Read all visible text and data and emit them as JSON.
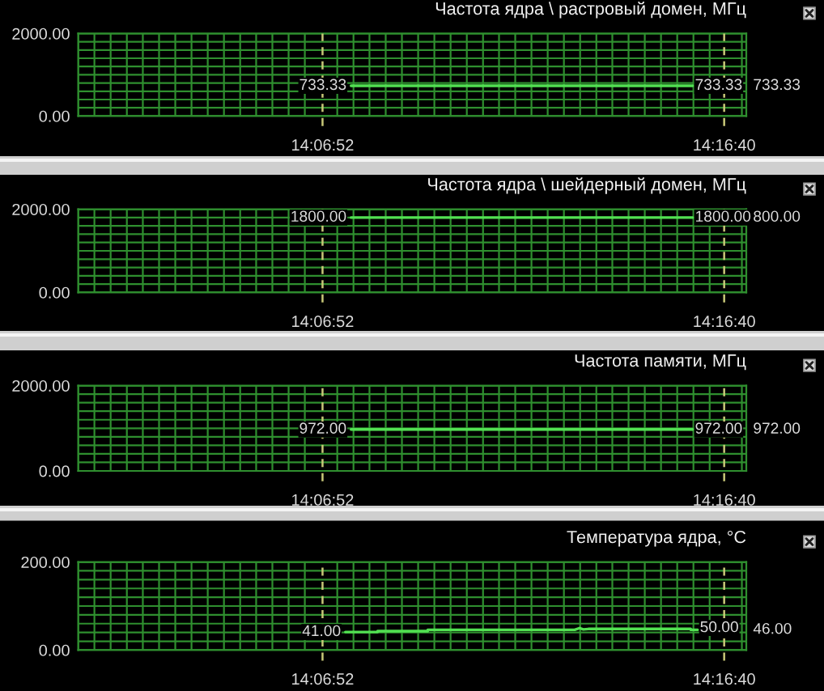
{
  "chart_data": [
    {
      "type": "line",
      "title": "Частота ядра \\ растровый домен, МГц",
      "xlim": [
        14.015,
        14.2868
      ],
      "xticks": [
        {
          "value": 14.015,
          "label": null
        },
        {
          "value": 14.0216,
          "label": null
        },
        {
          "value": 14.0282,
          "label": null
        },
        {
          "value": 14.0348,
          "label": null
        },
        {
          "value": 14.0413,
          "label": null
        },
        {
          "value": 14.0479,
          "label": null
        },
        {
          "value": 14.0545,
          "label": null
        },
        {
          "value": 14.0611,
          "label": null
        },
        {
          "value": 14.0677,
          "label": null
        },
        {
          "value": 14.0743,
          "label": null
        },
        {
          "value": 14.0809,
          "label": null
        },
        {
          "value": 14.0874,
          "label": null
        },
        {
          "value": 14.094,
          "label": null
        },
        {
          "value": 14.1006,
          "label": null
        },
        {
          "value": 14.1072,
          "label": null
        },
        {
          "value": 14.1204,
          "label": null
        },
        {
          "value": 14.127,
          "label": null
        },
        {
          "value": 14.1335,
          "label": null
        },
        {
          "value": 14.1401,
          "label": null
        },
        {
          "value": 14.1467,
          "label": null
        },
        {
          "value": 14.1533,
          "label": null
        },
        {
          "value": 14.1599,
          "label": null
        },
        {
          "value": 14.1665,
          "label": null
        },
        {
          "value": 14.1731,
          "label": null
        },
        {
          "value": 14.1797,
          "label": null
        },
        {
          "value": 14.1862,
          "label": null
        },
        {
          "value": 14.1928,
          "label": null
        },
        {
          "value": 14.1994,
          "label": null
        },
        {
          "value": 14.206,
          "label": null
        },
        {
          "value": 14.2126,
          "label": null
        },
        {
          "value": 14.2192,
          "label": null
        },
        {
          "value": 14.2258,
          "label": null
        },
        {
          "value": 14.2323,
          "label": null
        },
        {
          "value": 14.2389,
          "label": null
        },
        {
          "value": 14.2455,
          "label": null
        },
        {
          "value": 14.2521,
          "label": null
        },
        {
          "value": 14.2587,
          "label": null
        },
        {
          "value": 14.2653,
          "label": null
        },
        {
          "value": 14.2719,
          "label": null
        },
        {
          "value": 14.285,
          "label": null
        }
      ],
      "ylim": [
        0,
        2000
      ],
      "yticks": [
        {
          "value": 0,
          "label": "0.00"
        },
        {
          "value": 200,
          "label": null
        },
        {
          "value": 400,
          "label": null
        },
        {
          "value": 600,
          "label": null
        },
        {
          "value": 800,
          "label": null
        },
        {
          "value": 1000,
          "label": null
        },
        {
          "value": 1200,
          "label": null
        },
        {
          "value": 1400,
          "label": null
        },
        {
          "value": 1600,
          "label": null
        },
        {
          "value": 1800,
          "label": null
        },
        {
          "value": 2000,
          "label": "2000.00"
        }
      ],
      "tick_labels": "y",
      "grid": true,
      "series": [
        {
          "color": "#52e052",
          "x": [
            14.126,
            14.265
          ],
          "values": [
            733.33,
            733.33
          ]
        }
      ],
      "ref_lines": [
        {
          "axis": "x",
          "value": 14.1144,
          "label": "14:06:52",
          "color": "#c8c878",
          "line_style": "dashed"
        },
        {
          "axis": "x",
          "value": 14.2778,
          "label": "14:16:40",
          "color": "#c8c878",
          "line_style": "dashed"
        }
      ],
      "annotations": [
        {
          "text": "733.33",
          "x": 14.126,
          "y": 733.33
        },
        {
          "text": "733.33",
          "x": 14.265,
          "y": 733.33
        },
        "733.33"
      ]
    },
    {
      "type": "line",
      "title": "Частота ядра \\ шейдерный домен, МГц",
      "xlim": [
        14.015,
        14.2868
      ],
      "xticks": [
        {
          "value": 14.015,
          "label": null
        },
        {
          "value": 14.0216,
          "label": null
        },
        {
          "value": 14.0282,
          "label": null
        },
        {
          "value": 14.0348,
          "label": null
        },
        {
          "value": 14.0413,
          "label": null
        },
        {
          "value": 14.0479,
          "label": null
        },
        {
          "value": 14.0545,
          "label": null
        },
        {
          "value": 14.0611,
          "label": null
        },
        {
          "value": 14.0677,
          "label": null
        },
        {
          "value": 14.0743,
          "label": null
        },
        {
          "value": 14.0809,
          "label": null
        },
        {
          "value": 14.0874,
          "label": null
        },
        {
          "value": 14.094,
          "label": null
        },
        {
          "value": 14.1006,
          "label": null
        },
        {
          "value": 14.1072,
          "label": null
        },
        {
          "value": 14.1204,
          "label": null
        },
        {
          "value": 14.127,
          "label": null
        },
        {
          "value": 14.1335,
          "label": null
        },
        {
          "value": 14.1401,
          "label": null
        },
        {
          "value": 14.1467,
          "label": null
        },
        {
          "value": 14.1533,
          "label": null
        },
        {
          "value": 14.1599,
          "label": null
        },
        {
          "value": 14.1665,
          "label": null
        },
        {
          "value": 14.1731,
          "label": null
        },
        {
          "value": 14.1797,
          "label": null
        },
        {
          "value": 14.1862,
          "label": null
        },
        {
          "value": 14.1928,
          "label": null
        },
        {
          "value": 14.1994,
          "label": null
        },
        {
          "value": 14.206,
          "label": null
        },
        {
          "value": 14.2126,
          "label": null
        },
        {
          "value": 14.2192,
          "label": null
        },
        {
          "value": 14.2258,
          "label": null
        },
        {
          "value": 14.2323,
          "label": null
        },
        {
          "value": 14.2389,
          "label": null
        },
        {
          "value": 14.2455,
          "label": null
        },
        {
          "value": 14.2521,
          "label": null
        },
        {
          "value": 14.2587,
          "label": null
        },
        {
          "value": 14.2653,
          "label": null
        },
        {
          "value": 14.2719,
          "label": null
        },
        {
          "value": 14.285,
          "label": null
        }
      ],
      "ylim": [
        0,
        2000
      ],
      "yticks": [
        {
          "value": 0,
          "label": "0.00"
        },
        {
          "value": 200,
          "label": null
        },
        {
          "value": 400,
          "label": null
        },
        {
          "value": 600,
          "label": null
        },
        {
          "value": 800,
          "label": null
        },
        {
          "value": 1000,
          "label": null
        },
        {
          "value": 1200,
          "label": null
        },
        {
          "value": 1400,
          "label": null
        },
        {
          "value": 1600,
          "label": null
        },
        {
          "value": 1800,
          "label": null
        },
        {
          "value": 2000,
          "label": "2000.00"
        }
      ],
      "tick_labels": "y",
      "grid": true,
      "series": [
        {
          "color": "#52e052",
          "x": [
            14.126,
            14.265
          ],
          "values": [
            1800,
            1800
          ]
        }
      ],
      "ref_lines": [
        {
          "axis": "x",
          "value": 14.1144,
          "label": "14:06:52",
          "color": "#c8c878",
          "line_style": "dashed"
        },
        {
          "axis": "x",
          "value": 14.2778,
          "label": "14:16:40",
          "color": "#c8c878",
          "line_style": "dashed"
        }
      ],
      "annotations": [
        {
          "text": "1800.00",
          "x": 14.126,
          "y": 1800
        },
        {
          "text": "1800.00",
          "x": 14.265,
          "y": 1800
        },
        "800.00"
      ]
    },
    {
      "type": "line",
      "title": "Частота памяти, МГц",
      "xlim": [
        14.015,
        14.2868
      ],
      "xticks": [
        {
          "value": 14.015,
          "label": null
        },
        {
          "value": 14.0216,
          "label": null
        },
        {
          "value": 14.0282,
          "label": null
        },
        {
          "value": 14.0348,
          "label": null
        },
        {
          "value": 14.0413,
          "label": null
        },
        {
          "value": 14.0479,
          "label": null
        },
        {
          "value": 14.0545,
          "label": null
        },
        {
          "value": 14.0611,
          "label": null
        },
        {
          "value": 14.0677,
          "label": null
        },
        {
          "value": 14.0743,
          "label": null
        },
        {
          "value": 14.0809,
          "label": null
        },
        {
          "value": 14.0874,
          "label": null
        },
        {
          "value": 14.094,
          "label": null
        },
        {
          "value": 14.1006,
          "label": null
        },
        {
          "value": 14.1072,
          "label": null
        },
        {
          "value": 14.1204,
          "label": null
        },
        {
          "value": 14.127,
          "label": null
        },
        {
          "value": 14.1335,
          "label": null
        },
        {
          "value": 14.1401,
          "label": null
        },
        {
          "value": 14.1467,
          "label": null
        },
        {
          "value": 14.1533,
          "label": null
        },
        {
          "value": 14.1599,
          "label": null
        },
        {
          "value": 14.1665,
          "label": null
        },
        {
          "value": 14.1731,
          "label": null
        },
        {
          "value": 14.1797,
          "label": null
        },
        {
          "value": 14.1862,
          "label": null
        },
        {
          "value": 14.1928,
          "label": null
        },
        {
          "value": 14.1994,
          "label": null
        },
        {
          "value": 14.206,
          "label": null
        },
        {
          "value": 14.2126,
          "label": null
        },
        {
          "value": 14.2192,
          "label": null
        },
        {
          "value": 14.2258,
          "label": null
        },
        {
          "value": 14.2323,
          "label": null
        },
        {
          "value": 14.2389,
          "label": null
        },
        {
          "value": 14.2455,
          "label": null
        },
        {
          "value": 14.2521,
          "label": null
        },
        {
          "value": 14.2587,
          "label": null
        },
        {
          "value": 14.2653,
          "label": null
        },
        {
          "value": 14.2719,
          "label": null
        },
        {
          "value": 14.285,
          "label": null
        }
      ],
      "ylim": [
        0,
        2000
      ],
      "yticks": [
        {
          "value": 0,
          "label": "0.00"
        },
        {
          "value": 200,
          "label": null
        },
        {
          "value": 400,
          "label": null
        },
        {
          "value": 600,
          "label": null
        },
        {
          "value": 800,
          "label": null
        },
        {
          "value": 1000,
          "label": null
        },
        {
          "value": 1200,
          "label": null
        },
        {
          "value": 1400,
          "label": null
        },
        {
          "value": 1600,
          "label": null
        },
        {
          "value": 1800,
          "label": null
        },
        {
          "value": 2000,
          "label": "2000.00"
        }
      ],
      "tick_labels": "y",
      "grid": true,
      "series": [
        {
          "color": "#52e052",
          "x": [
            14.126,
            14.265
          ],
          "values": [
            972,
            972
          ]
        }
      ],
      "ref_lines": [
        {
          "axis": "x",
          "value": 14.1144,
          "label": "14:06:52",
          "color": "#c8c878",
          "line_style": "dashed"
        },
        {
          "axis": "x",
          "value": 14.2778,
          "label": "14:16:40",
          "color": "#c8c878",
          "line_style": "dashed"
        }
      ],
      "annotations": [
        {
          "text": "972.00",
          "x": 14.126,
          "y": 972
        },
        {
          "text": "972.00",
          "x": 14.265,
          "y": 972
        },
        "972.00"
      ]
    },
    {
      "type": "line",
      "title": "Температура ядра, °C",
      "xlim": [
        14.015,
        14.2868
      ],
      "xticks": [
        {
          "value": 14.015,
          "label": null
        },
        {
          "value": 14.0216,
          "label": null
        },
        {
          "value": 14.0282,
          "label": null
        },
        {
          "value": 14.0348,
          "label": null
        },
        {
          "value": 14.0413,
          "label": null
        },
        {
          "value": 14.0479,
          "label": null
        },
        {
          "value": 14.0545,
          "label": null
        },
        {
          "value": 14.0611,
          "label": null
        },
        {
          "value": 14.0677,
          "label": null
        },
        {
          "value": 14.0743,
          "label": null
        },
        {
          "value": 14.0809,
          "label": null
        },
        {
          "value": 14.0874,
          "label": null
        },
        {
          "value": 14.094,
          "label": null
        },
        {
          "value": 14.1006,
          "label": null
        },
        {
          "value": 14.1072,
          "label": null
        },
        {
          "value": 14.1204,
          "label": null
        },
        {
          "value": 14.127,
          "label": null
        },
        {
          "value": 14.1335,
          "label": null
        },
        {
          "value": 14.1401,
          "label": null
        },
        {
          "value": 14.1467,
          "label": null
        },
        {
          "value": 14.1533,
          "label": null
        },
        {
          "value": 14.1599,
          "label": null
        },
        {
          "value": 14.1665,
          "label": null
        },
        {
          "value": 14.1731,
          "label": null
        },
        {
          "value": 14.1797,
          "label": null
        },
        {
          "value": 14.1862,
          "label": null
        },
        {
          "value": 14.1928,
          "label": null
        },
        {
          "value": 14.1994,
          "label": null
        },
        {
          "value": 14.206,
          "label": null
        },
        {
          "value": 14.2126,
          "label": null
        },
        {
          "value": 14.2192,
          "label": null
        },
        {
          "value": 14.2258,
          "label": null
        },
        {
          "value": 14.2323,
          "label": null
        },
        {
          "value": 14.2389,
          "label": null
        },
        {
          "value": 14.2455,
          "label": null
        },
        {
          "value": 14.2521,
          "label": null
        },
        {
          "value": 14.2587,
          "label": null
        },
        {
          "value": 14.2653,
          "label": null
        },
        {
          "value": 14.2719,
          "label": null
        },
        {
          "value": 14.285,
          "label": null
        }
      ],
      "ylim": [
        0,
        200
      ],
      "yticks": [
        {
          "value": 0,
          "label": "0.00"
        },
        {
          "value": 20,
          "label": null
        },
        {
          "value": 40,
          "label": null
        },
        {
          "value": 60,
          "label": null
        },
        {
          "value": 80,
          "label": null
        },
        {
          "value": 100,
          "label": null
        },
        {
          "value": 120,
          "label": null
        },
        {
          "value": 140,
          "label": null
        },
        {
          "value": 160,
          "label": null
        },
        {
          "value": 180,
          "label": null
        },
        {
          "value": 200,
          "label": "200.00"
        }
      ],
      "tick_labels": "y",
      "grid": true,
      "series": [
        {
          "color": "#52e052",
          "x": [
            14.1237,
            14.1368,
            14.1368,
            14.1572,
            14.1572,
            14.217,
            14.219,
            14.2205,
            14.2225,
            14.2642,
            14.2642,
            14.267
          ],
          "values": [
            41,
            41,
            43,
            43,
            46,
            46,
            50,
            47,
            48,
            48,
            46,
            46
          ]
        }
      ],
      "ref_lines": [
        {
          "axis": "x",
          "value": 14.1144,
          "label": "14:06:52",
          "color": "#c8c878",
          "line_style": "dashed"
        },
        {
          "axis": "x",
          "value": 14.2778,
          "label": "14:16:40",
          "color": "#c8c878",
          "line_style": "dashed"
        }
      ],
      "annotations": [
        {
          "text": "41.00",
          "x": 14.1237,
          "y": 41
        },
        {
          "text": "50.00",
          "x": 14.267,
          "y": 50
        },
        "46.00"
      ]
    }
  ]
}
